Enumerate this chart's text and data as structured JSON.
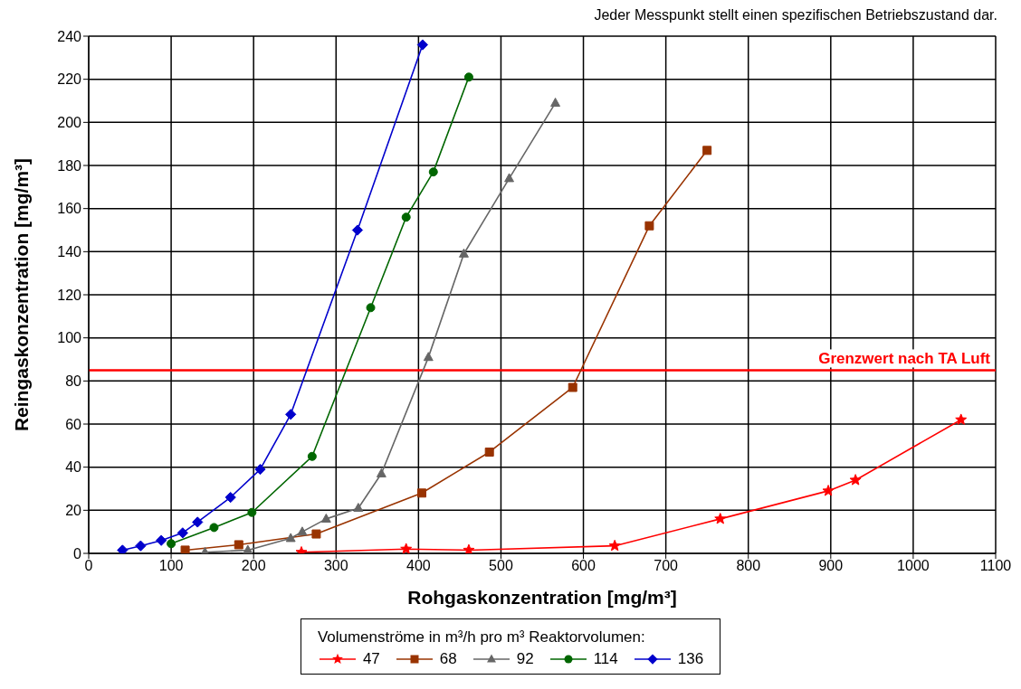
{
  "chart_data": {
    "type": "line",
    "xlabel": "Rohgaskonzentration [mg/m³]",
    "ylabel": "Reingaskonzentration [mg/m³]",
    "legend_title": "Volumenströme in m³/h pro m³ Reaktorvolumen:",
    "annotations": [
      "Jeder Messpunkt stellt einen spezifischen Betriebszustand dar."
    ],
    "xlim": [
      0,
      1100
    ],
    "xticks": [
      0,
      100,
      200,
      300,
      400,
      500,
      600,
      700,
      800,
      900,
      1000,
      1100
    ],
    "ylim": [
      0,
      240
    ],
    "yticks": [
      0,
      20,
      40,
      60,
      80,
      100,
      120,
      140,
      160,
      180,
      200,
      220,
      240
    ],
    "grid": true,
    "legend": "bottom",
    "ref_lines": [
      {
        "axis": "y",
        "value": 85,
        "label": "Grenzwert nach TA Luft",
        "color": "#ff0000"
      }
    ],
    "series": [
      {
        "name": "47",
        "color": "#ff0000",
        "marker": "star",
        "x": [
          258,
          385,
          461,
          638,
          766,
          897,
          930,
          1058
        ],
        "values": [
          0.5,
          2,
          1.5,
          3.5,
          16,
          29,
          34,
          62
        ]
      },
      {
        "name": "68",
        "color": "#993300",
        "marker": "square",
        "x": [
          117,
          182,
          276,
          404,
          486,
          587,
          680,
          750
        ],
        "values": [
          1.5,
          4,
          9,
          28,
          47,
          77,
          152,
          187
        ]
      },
      {
        "name": "92",
        "color": "#666666",
        "marker": "triangle",
        "x": [
          141,
          193,
          245,
          259,
          288,
          327,
          355,
          412,
          455,
          510,
          566
        ],
        "values": [
          0.5,
          1.5,
          7,
          10,
          16,
          21,
          37,
          91,
          139,
          174,
          209
        ]
      },
      {
        "name": "114",
        "color": "#006600",
        "marker": "circle",
        "x": [
          100,
          152,
          198,
          271,
          342,
          385,
          418,
          461
        ],
        "values": [
          4.5,
          12,
          19,
          45,
          114,
          156,
          177,
          221
        ]
      },
      {
        "name": "136",
        "color": "#0000cc",
        "marker": "diamond",
        "x": [
          41,
          63,
          88,
          114,
          132,
          172,
          208,
          245,
          326,
          405
        ],
        "values": [
          1.5,
          3.5,
          6,
          9.5,
          14.5,
          26,
          39,
          64.5,
          150,
          236
        ]
      }
    ]
  }
}
